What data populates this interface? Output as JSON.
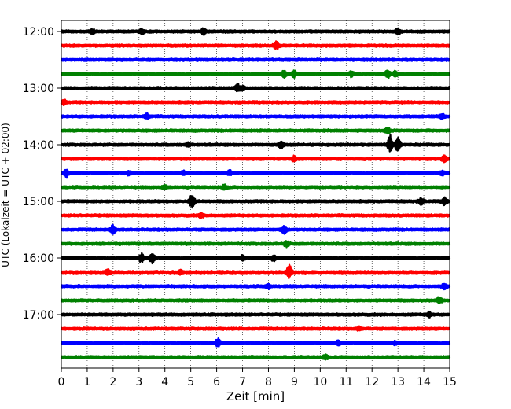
{
  "chart_data": {
    "type": "line",
    "title": "",
    "xlabel": "Zeit  [min]",
    "ylabel": "UTC (Lokalzeit = UTC + 02:00)",
    "xlim": [
      0,
      15
    ],
    "x_ticks": [
      0,
      1,
      2,
      3,
      4,
      5,
      6,
      7,
      8,
      9,
      10,
      11,
      12,
      13,
      14,
      15
    ],
    "x_tick_labels": [
      "0",
      "1",
      "2",
      "3",
      "4",
      "5",
      "6",
      "7",
      "8",
      "9",
      "10",
      "11",
      "12",
      "13",
      "14",
      "15"
    ],
    "y_tick_labels": [
      "12:00",
      "13:00",
      "14:00",
      "15:00",
      "16:00",
      "17:00"
    ],
    "y_tick_rows": [
      0,
      4,
      8,
      12,
      16,
      20
    ],
    "grid": {
      "x": true,
      "y": false,
      "style": "dotted"
    },
    "trace_interval_min": 15,
    "trace_colors": [
      "#000000",
      "#ff0000",
      "#0000ff",
      "#008000"
    ],
    "traces": [
      {
        "start": "12:00",
        "color": "#000000",
        "events": [
          {
            "t": 1.2,
            "amp": 0.25
          },
          {
            "t": 3.1,
            "amp": 0.3
          },
          {
            "t": 5.5,
            "amp": 0.4
          },
          {
            "t": 13.0,
            "amp": 0.35
          }
        ]
      },
      {
        "start": "12:15",
        "color": "#ff0000",
        "events": [
          {
            "t": 8.3,
            "amp": 0.45
          }
        ]
      },
      {
        "start": "12:30",
        "color": "#0000ff",
        "events": []
      },
      {
        "start": "12:45",
        "color": "#008000",
        "events": [
          {
            "t": 8.6,
            "amp": 0.45
          },
          {
            "t": 9.0,
            "amp": 0.4
          },
          {
            "t": 11.2,
            "amp": 0.3
          },
          {
            "t": 12.6,
            "amp": 0.5
          },
          {
            "t": 12.9,
            "amp": 0.35
          }
        ]
      },
      {
        "start": "13:00",
        "color": "#000000",
        "events": [
          {
            "t": 6.8,
            "amp": 0.5
          },
          {
            "t": 7.0,
            "amp": 0.3
          }
        ]
      },
      {
        "start": "13:15",
        "color": "#ff0000",
        "events": [
          {
            "t": 0.1,
            "amp": 0.3
          }
        ]
      },
      {
        "start": "13:30",
        "color": "#0000ff",
        "events": [
          {
            "t": 3.3,
            "amp": 0.3
          },
          {
            "t": 14.7,
            "amp": 0.3
          }
        ]
      },
      {
        "start": "13:45",
        "color": "#008000",
        "events": [
          {
            "t": 12.6,
            "amp": 0.35
          }
        ]
      },
      {
        "start": "14:00",
        "color": "#000000",
        "events": [
          {
            "t": 4.9,
            "amp": 0.25
          },
          {
            "t": 8.5,
            "amp": 0.4
          },
          {
            "t": 12.7,
            "amp": 1.2
          },
          {
            "t": 13.0,
            "amp": 0.9
          }
        ]
      },
      {
        "start": "14:15",
        "color": "#ff0000",
        "events": [
          {
            "t": 9.0,
            "amp": 0.35
          },
          {
            "t": 14.8,
            "amp": 0.45
          }
        ]
      },
      {
        "start": "14:30",
        "color": "#0000ff",
        "events": [
          {
            "t": 0.2,
            "amp": 0.45
          },
          {
            "t": 2.6,
            "amp": 0.3
          },
          {
            "t": 4.7,
            "amp": 0.25
          },
          {
            "t": 6.5,
            "amp": 0.3
          },
          {
            "t": 14.7,
            "amp": 0.3
          }
        ]
      },
      {
        "start": "14:45",
        "color": "#008000",
        "events": [
          {
            "t": 4.0,
            "amp": 0.25
          },
          {
            "t": 6.3,
            "amp": 0.3
          }
        ]
      },
      {
        "start": "15:00",
        "color": "#000000",
        "events": [
          {
            "t": 5.05,
            "amp": 1.0
          },
          {
            "t": 13.9,
            "amp": 0.35
          },
          {
            "t": 14.8,
            "amp": 0.45
          }
        ]
      },
      {
        "start": "15:15",
        "color": "#ff0000",
        "events": [
          {
            "t": 5.4,
            "amp": 0.3
          }
        ]
      },
      {
        "start": "15:30",
        "color": "#0000ff",
        "events": [
          {
            "t": 2.0,
            "amp": 0.6
          },
          {
            "t": 8.6,
            "amp": 0.6
          }
        ]
      },
      {
        "start": "15:45",
        "color": "#008000",
        "events": [
          {
            "t": 8.7,
            "amp": 0.35
          }
        ]
      },
      {
        "start": "16:00",
        "color": "#000000",
        "events": [
          {
            "t": 3.1,
            "amp": 0.55
          },
          {
            "t": 3.5,
            "amp": 0.65
          },
          {
            "t": 7.0,
            "amp": 0.3
          },
          {
            "t": 8.2,
            "amp": 0.35
          }
        ]
      },
      {
        "start": "16:15",
        "color": "#ff0000",
        "events": [
          {
            "t": 1.8,
            "amp": 0.3
          },
          {
            "t": 4.6,
            "amp": 0.3
          },
          {
            "t": 8.8,
            "amp": 0.9
          }
        ]
      },
      {
        "start": "16:30",
        "color": "#0000ff",
        "events": [
          {
            "t": 8.0,
            "amp": 0.3
          },
          {
            "t": 14.8,
            "amp": 0.35
          }
        ]
      },
      {
        "start": "16:45",
        "color": "#008000",
        "events": [
          {
            "t": 14.6,
            "amp": 0.4
          }
        ]
      },
      {
        "start": "17:00",
        "color": "#000000",
        "events": [
          {
            "t": 14.2,
            "amp": 0.3
          }
        ]
      },
      {
        "start": "17:15",
        "color": "#ff0000",
        "events": [
          {
            "t": 11.5,
            "amp": 0.25
          }
        ]
      },
      {
        "start": "17:30",
        "color": "#0000ff",
        "events": [
          {
            "t": 6.05,
            "amp": 0.5
          },
          {
            "t": 10.7,
            "amp": 0.3
          },
          {
            "t": 12.9,
            "amp": 0.25
          }
        ]
      },
      {
        "start": "17:45",
        "color": "#008000",
        "events": [
          {
            "t": 10.2,
            "amp": 0.3
          }
        ]
      }
    ]
  }
}
